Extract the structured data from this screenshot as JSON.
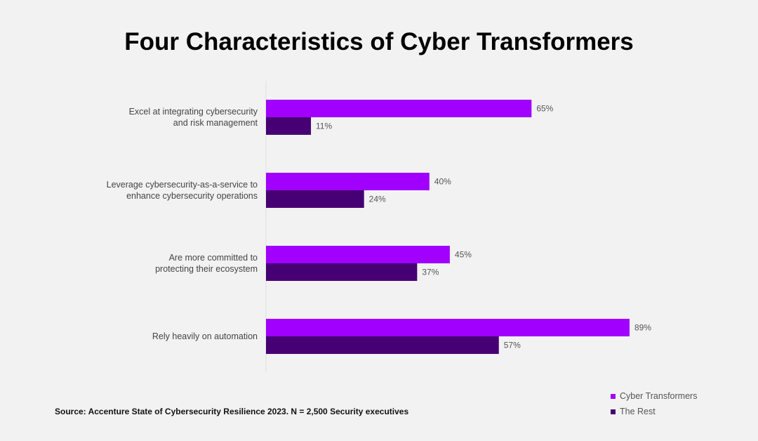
{
  "chart_data": {
    "type": "bar",
    "orientation": "horizontal",
    "title": "Four Characteristics of Cyber Transformers",
    "categories": [
      [
        "Excel at integrating cybersecurity",
        "and risk management"
      ],
      [
        "Leverage cybersecurity-as-a-service to",
        "enhance cybersecurity operations"
      ],
      [
        "Are more committed to",
        "protecting their ecosystem"
      ],
      [
        "Rely heavily on automation"
      ]
    ],
    "series": [
      {
        "name": "Cyber Transformers",
        "values": [
          65,
          40,
          45,
          89
        ],
        "color": "#A100FF"
      },
      {
        "name": "The Rest",
        "values": [
          11,
          24,
          37,
          57
        ],
        "color": "#460073"
      }
    ],
    "value_suffix": "%",
    "xlim": [
      0,
      100
    ],
    "grid": false,
    "legend_position": "bottom-right"
  },
  "source": "Source: Accenture State of Cybersecurity Resilience 2023. N = 2,500 Security executives"
}
